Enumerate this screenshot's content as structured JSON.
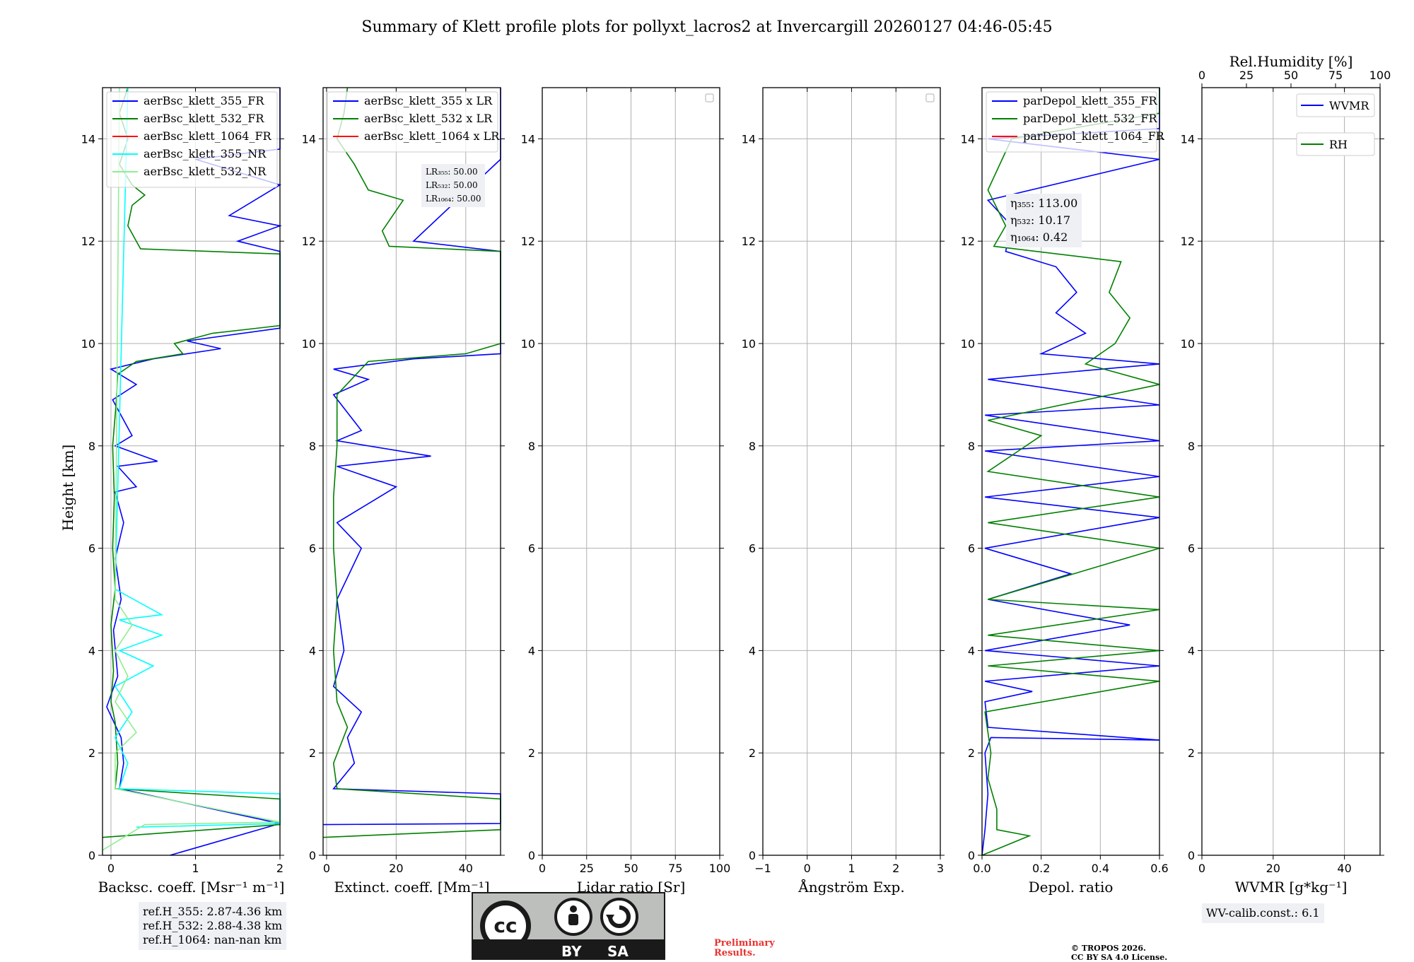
{
  "title": "Summary of Klett profile plots for pollyxt_lacros2 at Invercargill 20260127 04:46-05:45",
  "y_axis_label": "Height [km]",
  "colors": {
    "blue": "#0000ff",
    "green": "#008000",
    "red": "#ff0000",
    "cyan": "#00ffff",
    "lightgreen": "#90ee90",
    "grid": "#b0b0b0"
  },
  "chart_data": [
    {
      "type": "line",
      "id": "backscatter",
      "xlabel": "Backsc. coeff. [Msr⁻¹ m⁻¹]",
      "xlim": [
        -0.1,
        2
      ],
      "ylim": [
        0,
        15
      ],
      "xticks": [
        0,
        1,
        2
      ],
      "xtick_labels": [
        "0",
        "1",
        "2"
      ],
      "yticks": [
        0,
        2,
        4,
        6,
        8,
        10,
        12,
        14
      ],
      "legend_position": "top-left",
      "legend": [
        "aerBsc_klett_355_FR",
        "aerBsc_klett_532_FR",
        "aerBsc_klett_1064_FR",
        "aerBsc_klett_355_NR",
        "aerBsc_klett_532_NR"
      ],
      "series": [
        {
          "name": "aerBsc_klett_355_FR",
          "color": "blue",
          "points": [
            [
              0.7,
              0
            ],
            [
              2.0,
              0.62
            ],
            [
              0.1,
              1.3
            ],
            [
              0.15,
              1.8
            ],
            [
              0.12,
              2.3
            ],
            [
              -0.05,
              2.9
            ],
            [
              0.08,
              3.5
            ],
            [
              0.03,
              4.4
            ],
            [
              0.12,
              5.0
            ],
            [
              0.05,
              5.8
            ],
            [
              0.15,
              6.5
            ],
            [
              0.05,
              7.1
            ],
            [
              0.3,
              7.2
            ],
            [
              0.08,
              7.6
            ],
            [
              0.55,
              7.7
            ],
            [
              0.05,
              8.0
            ],
            [
              0.25,
              8.2
            ],
            [
              0.02,
              8.9
            ],
            [
              0.3,
              9.2
            ],
            [
              0.0,
              9.5
            ],
            [
              0.5,
              9.7
            ],
            [
              1.3,
              9.9
            ],
            [
              0.9,
              10.05
            ],
            [
              2.0,
              10.3
            ],
            [
              2.0,
              11.8
            ],
            [
              1.5,
              12.0
            ],
            [
              2.0,
              12.3
            ],
            [
              1.4,
              12.5
            ],
            [
              2.0,
              13.1
            ],
            [
              1.0,
              13.6
            ],
            [
              2.0,
              13.8
            ],
            [
              2.0,
              15
            ]
          ]
        },
        {
          "name": "aerBsc_klett_532_FR",
          "color": "green",
          "points": [
            [
              -0.1,
              0.35
            ],
            [
              2.0,
              0.6
            ],
            [
              2.0,
              1.1
            ],
            [
              0.05,
              1.3
            ],
            [
              0.08,
              1.8
            ],
            [
              0.05,
              2.6
            ],
            [
              0.0,
              3.0
            ],
            [
              0.03,
              3.6
            ],
            [
              0.0,
              4.5
            ],
            [
              0.05,
              5.2
            ],
            [
              0.02,
              6.0
            ],
            [
              0.04,
              7.0
            ],
            [
              0.02,
              8.0
            ],
            [
              0.06,
              8.8
            ],
            [
              0.08,
              9.4
            ],
            [
              0.3,
              9.65
            ],
            [
              0.85,
              9.8
            ],
            [
              0.75,
              10.0
            ],
            [
              1.2,
              10.2
            ],
            [
              2.0,
              10.35
            ],
            [
              2.0,
              11.75
            ],
            [
              0.35,
              11.85
            ],
            [
              0.3,
              12.0
            ],
            [
              0.2,
              12.3
            ],
            [
              0.25,
              12.7
            ],
            [
              0.4,
              12.9
            ],
            [
              0.25,
              13.1
            ],
            [
              0.1,
              13.5
            ],
            [
              0.2,
              14.0
            ],
            [
              0.1,
              14.5
            ],
            [
              0.2,
              15
            ]
          ]
        },
        {
          "name": "aerBsc_klett_355_NR",
          "color": "cyan",
          "points": [
            [
              0.3,
              0.55
            ],
            [
              2.0,
              0.62
            ],
            [
              2.0,
              1.2
            ],
            [
              0.1,
              1.3
            ],
            [
              0.2,
              1.8
            ],
            [
              0.05,
              2.3
            ],
            [
              0.25,
              2.8
            ],
            [
              0.05,
              3.3
            ],
            [
              0.5,
              3.7
            ],
            [
              0.1,
              4.0
            ],
            [
              0.6,
              4.3
            ],
            [
              0.1,
              4.6
            ],
            [
              0.6,
              4.7
            ],
            [
              0.05,
              5.2
            ],
            [
              0.2,
              15
            ]
          ]
        },
        {
          "name": "aerBsc_klett_532_NR",
          "color": "lightgreen",
          "points": [
            [
              -0.1,
              0.1
            ],
            [
              0.4,
              0.6
            ],
            [
              2.0,
              0.65
            ],
            [
              0.05,
              1.3
            ],
            [
              0.05,
              2.0
            ],
            [
              0.3,
              2.4
            ],
            [
              0.05,
              3.0
            ],
            [
              0.2,
              3.5
            ],
            [
              0.05,
              4.0
            ],
            [
              0.25,
              4.5
            ],
            [
              0.05,
              5.0
            ],
            [
              0.1,
              15
            ]
          ]
        }
      ],
      "annotation": [
        "ref.H_355: 2.87-4.36 km",
        "ref.H_532: 2.88-4.38 km",
        "ref.H_1064: nan-nan km"
      ]
    },
    {
      "type": "line",
      "id": "extinction",
      "xlabel": "Extinct. coeff. [Mm⁻¹]",
      "xlim": [
        -1,
        50
      ],
      "ylim": [
        0,
        15
      ],
      "xticks": [
        0,
        20,
        40
      ],
      "xtick_labels": [
        "0",
        "20",
        "40"
      ],
      "legend_position": "top-left",
      "legend": [
        "aerBsc_klett_355 x LR",
        "aerBsc_klett_532 x LR",
        "aerBsc_klett_1064 x LR"
      ],
      "series": [
        {
          "name": "aerBsc_klett_355 x LR",
          "color": "blue",
          "points": [
            [
              -1,
              0.6
            ],
            [
              50,
              0.62
            ],
            [
              50,
              1.2
            ],
            [
              2,
              1.3
            ],
            [
              8,
              1.8
            ],
            [
              6,
              2.3
            ],
            [
              10,
              2.8
            ],
            [
              2,
              3.3
            ],
            [
              5,
              4.0
            ],
            [
              3,
              5.0
            ],
            [
              10,
              6.0
            ],
            [
              3,
              6.5
            ],
            [
              20,
              7.2
            ],
            [
              3,
              7.6
            ],
            [
              30,
              7.8
            ],
            [
              3,
              8.1
            ],
            [
              10,
              8.3
            ],
            [
              2,
              9.0
            ],
            [
              12,
              9.3
            ],
            [
              2,
              9.5
            ],
            [
              25,
              9.7
            ],
            [
              50,
              9.8
            ],
            [
              50,
              11.8
            ],
            [
              25,
              12.0
            ],
            [
              50,
              13.6
            ],
            [
              50,
              15
            ]
          ]
        },
        {
          "name": "aerBsc_klett_532 x LR",
          "color": "green",
          "points": [
            [
              -1,
              0.35
            ],
            [
              50,
              0.5
            ],
            [
              50,
              1.1
            ],
            [
              3,
              1.3
            ],
            [
              2,
              1.8
            ],
            [
              6,
              2.5
            ],
            [
              3,
              3.0
            ],
            [
              2,
              4.0
            ],
            [
              3,
              5.0
            ],
            [
              2,
              6.0
            ],
            [
              2,
              7.0
            ],
            [
              3,
              8.0
            ],
            [
              3,
              9.0
            ],
            [
              12,
              9.65
            ],
            [
              40,
              9.8
            ],
            [
              50,
              10.0
            ],
            [
              50,
              11.8
            ],
            [
              18,
              11.9
            ],
            [
              16,
              12.2
            ],
            [
              22,
              12.8
            ],
            [
              12,
              13.0
            ],
            [
              8,
              13.5
            ],
            [
              3,
              14.0
            ],
            [
              5,
              14.5
            ],
            [
              6,
              15
            ]
          ]
        }
      ],
      "lr_box": {
        "lines": [
          "LR₃₅₅: 50.00",
          "LR₅₃₂: 50.00",
          "LR₁₀₆₄: 50.00"
        ]
      }
    },
    {
      "type": "line",
      "id": "lidar_ratio",
      "xlabel": "Lidar ratio [Sr]",
      "xlim": [
        0,
        100
      ],
      "ylim": [
        0,
        15
      ],
      "xticks": [
        0,
        25,
        50,
        75,
        100
      ],
      "xtick_labels": [
        "0",
        "25",
        "50",
        "75",
        "100"
      ],
      "legend_position": "top-right",
      "series": []
    },
    {
      "type": "line",
      "id": "angstrom",
      "xlabel": "Ångström Exp.",
      "xlim": [
        -1,
        3
      ],
      "ylim": [
        0,
        15
      ],
      "xticks": [
        -1,
        0,
        1,
        2,
        3
      ],
      "xtick_labels": [
        "−1",
        "0",
        "1",
        "2",
        "3"
      ],
      "legend_position": "top-right",
      "series": []
    },
    {
      "type": "line",
      "id": "depol",
      "xlabel": "Depol. ratio",
      "xlim": [
        0,
        0.6
      ],
      "ylim": [
        0,
        15
      ],
      "xticks": [
        0,
        0.2,
        0.4,
        0.6
      ],
      "xtick_labels": [
        "0.0",
        "0.2",
        "0.4",
        "0.6"
      ],
      "legend_position": "top-left",
      "legend": [
        "parDepol_klett_355_FR",
        "parDepol_klett_532_FR",
        "parDepol_klett_1064_FR"
      ],
      "series": [
        {
          "name": "parDepol_klett_355_FR",
          "color": "blue",
          "points": [
            [
              0.0,
              0.0
            ],
            [
              0.01,
              0.5
            ],
            [
              0.02,
              1.2
            ],
            [
              0.01,
              2.0
            ],
            [
              0.03,
              2.3
            ],
            [
              0.6,
              2.25
            ],
            [
              0.02,
              2.5
            ],
            [
              0.01,
              3.0
            ],
            [
              0.17,
              3.2
            ],
            [
              0.01,
              3.4
            ],
            [
              0.6,
              3.7
            ],
            [
              0.01,
              4.0
            ],
            [
              0.5,
              4.5
            ],
            [
              0.02,
              5.0
            ],
            [
              0.3,
              5.5
            ],
            [
              0.01,
              6.0
            ],
            [
              0.6,
              6.6
            ],
            [
              0.01,
              7.0
            ],
            [
              0.6,
              7.4
            ],
            [
              0.01,
              7.9
            ],
            [
              0.6,
              8.1
            ],
            [
              0.01,
              8.6
            ],
            [
              0.6,
              8.8
            ],
            [
              0.02,
              9.3
            ],
            [
              0.6,
              9.6
            ],
            [
              0.2,
              9.8
            ],
            [
              0.35,
              10.2
            ],
            [
              0.25,
              10.6
            ],
            [
              0.32,
              11.0
            ],
            [
              0.25,
              11.5
            ],
            [
              0.08,
              11.8
            ],
            [
              0.1,
              12.3
            ],
            [
              0.02,
              12.8
            ],
            [
              0.6,
              13.6
            ],
            [
              0.02,
              14.0
            ],
            [
              0.6,
              14.2
            ],
            [
              0.6,
              15
            ]
          ]
        },
        {
          "name": "parDepol_klett_532_FR",
          "color": "green",
          "points": [
            [
              0.0,
              0.0
            ],
            [
              0.16,
              0.38
            ],
            [
              0.05,
              0.5
            ],
            [
              0.05,
              0.9
            ],
            [
              0.02,
              1.5
            ],
            [
              0.03,
              2.0
            ],
            [
              0.01,
              2.8
            ],
            [
              0.6,
              3.4
            ],
            [
              0.02,
              3.7
            ],
            [
              0.6,
              4.0
            ],
            [
              0.02,
              4.3
            ],
            [
              0.6,
              4.8
            ],
            [
              0.02,
              5.0
            ],
            [
              0.6,
              6.0
            ],
            [
              0.02,
              6.5
            ],
            [
              0.6,
              7.0
            ],
            [
              0.02,
              7.5
            ],
            [
              0.2,
              8.2
            ],
            [
              0.02,
              8.5
            ],
            [
              0.6,
              9.2
            ],
            [
              0.35,
              9.6
            ],
            [
              0.45,
              10.0
            ],
            [
              0.5,
              10.5
            ],
            [
              0.43,
              11.0
            ],
            [
              0.47,
              11.6
            ],
            [
              0.04,
              11.9
            ],
            [
              0.08,
              12.3
            ],
            [
              0.02,
              13.0
            ],
            [
              0.1,
              14.0
            ],
            [
              0.6,
              14.5
            ],
            [
              0.6,
              15
            ]
          ]
        }
      ],
      "eta_box": {
        "lines": [
          "η₃₅₅: 113.00",
          "η₅₃₂: 10.17",
          "η₁₀₆₄: 0.42"
        ]
      }
    },
    {
      "type": "line",
      "id": "wvmr",
      "xlabel": "WVMR [g*kg⁻¹]",
      "xlim": [
        0,
        50
      ],
      "ylim": [
        0,
        15
      ],
      "xticks": [
        0,
        20,
        40
      ],
      "xtick_labels": [
        "0",
        "20",
        "40"
      ],
      "top_xlabel": "Rel.Humidity [%]",
      "top_xticks": [
        0,
        25,
        50,
        75,
        100
      ],
      "top_xtick_labels": [
        "0",
        "25",
        "50",
        "75",
        "100"
      ],
      "legend_position": "top-right",
      "legend": [
        "WVMR",
        "RH"
      ],
      "series": [],
      "annotation": "WV-calib.const.: 6.1"
    }
  ],
  "footer": {
    "cc_logo_text": "cc",
    "cc_by": "BY",
    "cc_sa": "SA",
    "preliminary": [
      "Preliminary",
      "Results."
    ],
    "copyright": [
      "© TROPOS 2026.",
      "CC BY SA 4.0 License."
    ]
  }
}
